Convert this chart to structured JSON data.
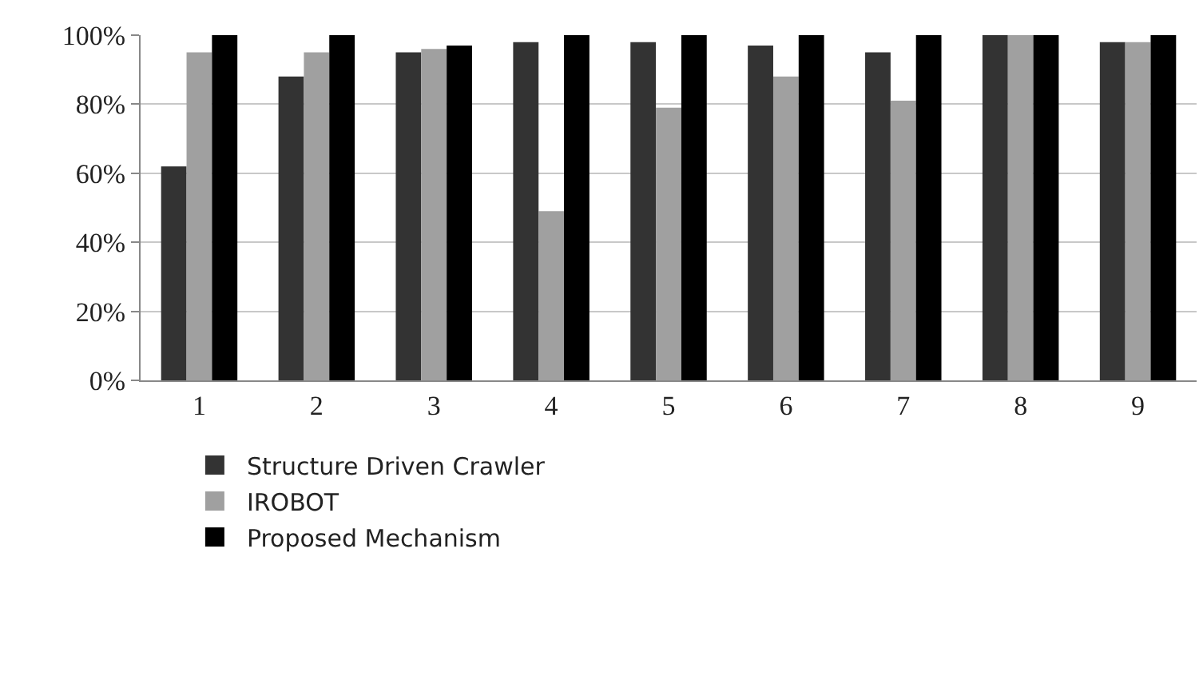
{
  "chart_data": {
    "type": "bar",
    "categories": [
      "1",
      "2",
      "3",
      "4",
      "5",
      "6",
      "7",
      "8",
      "9"
    ],
    "series": [
      {
        "name": "Structure Driven Crawler",
        "color": "#333333",
        "values": [
          62,
          88,
          95,
          98,
          98,
          97,
          95,
          100,
          98
        ]
      },
      {
        "name": "IROBOT",
        "color": "#a0a0a0",
        "values": [
          95,
          95,
          96,
          49,
          79,
          88,
          81,
          100,
          98
        ]
      },
      {
        "name": "Proposed Mechanism",
        "color": "#000000",
        "values": [
          100,
          100,
          97,
          100,
          100,
          100,
          100,
          100,
          100
        ]
      }
    ],
    "ylim": [
      0,
      100
    ],
    "yticks": [
      {
        "value": 0,
        "label": "0%"
      },
      {
        "value": 20,
        "label": "20%"
      },
      {
        "value": 40,
        "label": "40%"
      },
      {
        "value": 60,
        "label": "60%"
      },
      {
        "value": 80,
        "label": "80%"
      },
      {
        "value": 100,
        "label": "100%"
      }
    ],
    "grid": "y",
    "legend": "bottom"
  }
}
